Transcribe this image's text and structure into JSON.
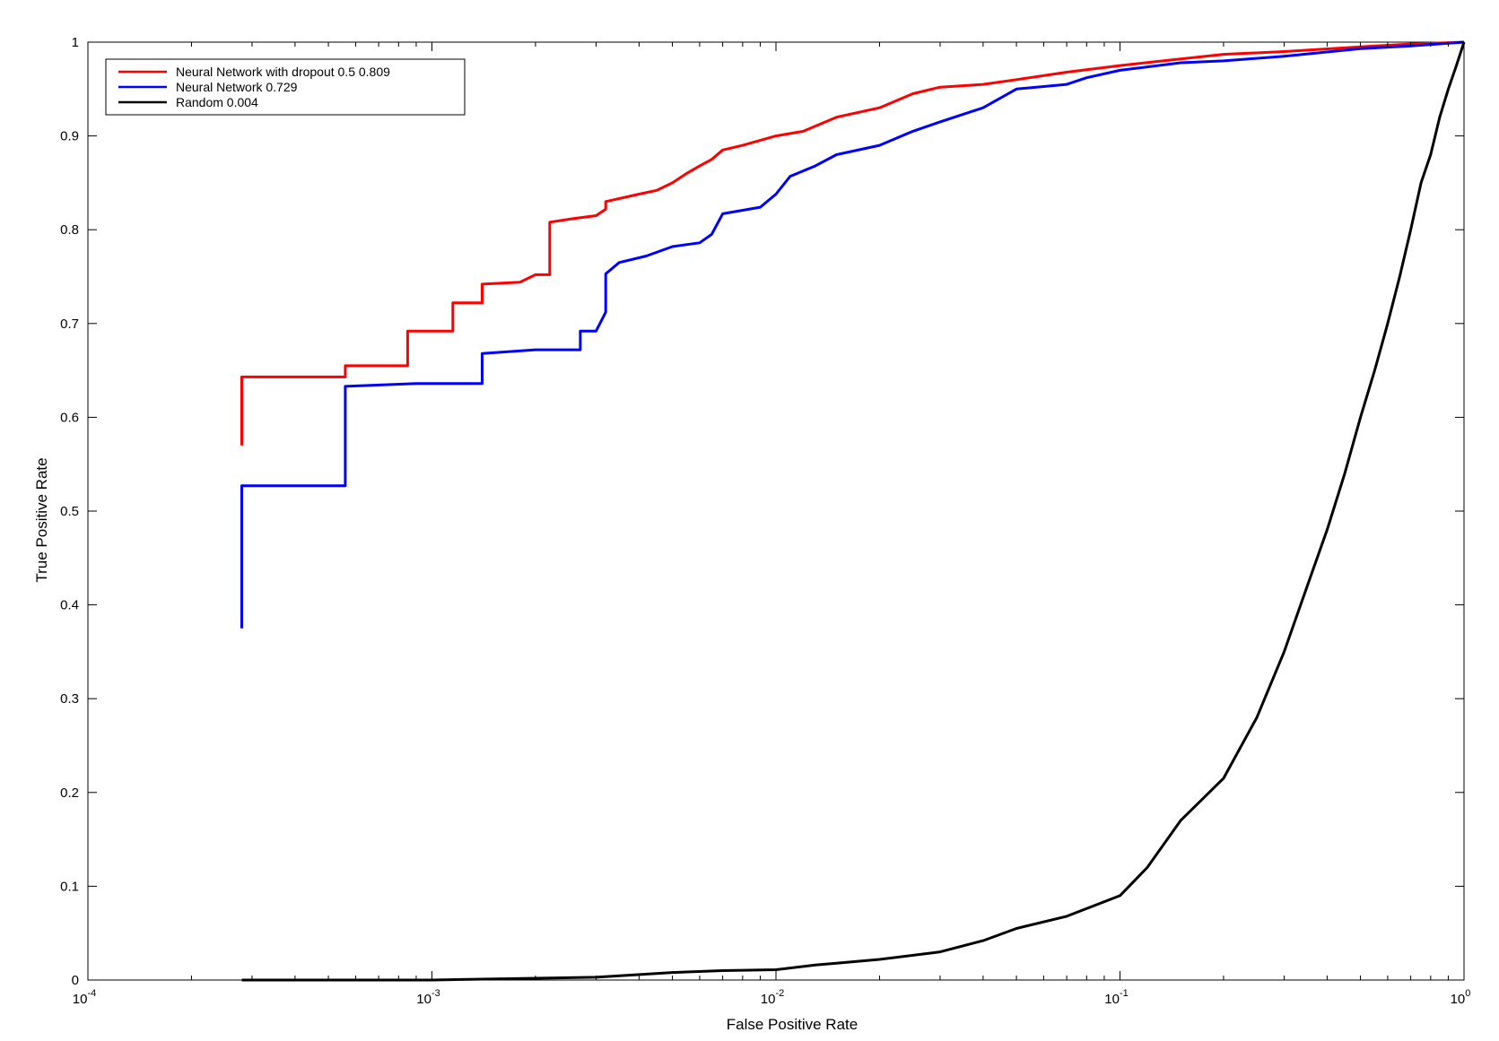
{
  "chart_data": {
    "type": "line",
    "title": "",
    "xlabel": "False Positive Rate",
    "ylabel": "True Positive Rate",
    "xscale": "log",
    "xlim": [
      0.0001,
      1
    ],
    "ylim": [
      0,
      1
    ],
    "grid": false,
    "legend_position": "top-left",
    "x_tick_labels": [
      {
        "base": "10",
        "exp": "-4",
        "value": 0.0001
      },
      {
        "base": "10",
        "exp": "-3",
        "value": 0.001
      },
      {
        "base": "10",
        "exp": "-2",
        "value": 0.01
      },
      {
        "base": "10",
        "exp": "-1",
        "value": 0.1
      },
      {
        "base": "10",
        "exp": "0",
        "value": 1
      }
    ],
    "y_tick_labels": [
      "0",
      "0.1",
      "0.2",
      "0.3",
      "0.4",
      "0.5",
      "0.6",
      "0.7",
      "0.8",
      "0.9",
      "1"
    ],
    "series": [
      {
        "name": "Neural Network with dropout 0.5  0.809",
        "color": "#ff0000",
        "x": [
          0.00028,
          0.00028,
          0.00056,
          0.00056,
          0.00085,
          0.00085,
          0.00115,
          0.00115,
          0.0014,
          0.0014,
          0.0018,
          0.002,
          0.0022,
          0.0022,
          0.0026,
          0.003,
          0.0032,
          0.0032,
          0.004,
          0.0045,
          0.005,
          0.0055,
          0.006,
          0.0065,
          0.007,
          0.008,
          0.01,
          0.012,
          0.015,
          0.02,
          0.025,
          0.03,
          0.04,
          0.05,
          0.07,
          0.1,
          0.15,
          0.2,
          0.3,
          0.5,
          0.7,
          1.0
        ],
        "y": [
          0.57,
          0.643,
          0.643,
          0.655,
          0.655,
          0.692,
          0.692,
          0.722,
          0.722,
          0.742,
          0.744,
          0.752,
          0.752,
          0.808,
          0.812,
          0.815,
          0.822,
          0.83,
          0.838,
          0.842,
          0.85,
          0.86,
          0.868,
          0.875,
          0.885,
          0.89,
          0.9,
          0.905,
          0.92,
          0.93,
          0.945,
          0.952,
          0.955,
          0.96,
          0.968,
          0.975,
          0.982,
          0.987,
          0.99,
          0.995,
          0.998,
          1.0
        ]
      },
      {
        "name": "Neural Network  0.729",
        "color": "#0000ff",
        "x": [
          0.00028,
          0.00028,
          0.00056,
          0.00056,
          0.0009,
          0.0014,
          0.0014,
          0.002,
          0.0027,
          0.0027,
          0.003,
          0.0032,
          0.0032,
          0.0035,
          0.0042,
          0.005,
          0.006,
          0.0065,
          0.007,
          0.009,
          0.01,
          0.011,
          0.013,
          0.015,
          0.02,
          0.025,
          0.03,
          0.04,
          0.05,
          0.07,
          0.08,
          0.1,
          0.15,
          0.2,
          0.3,
          0.5,
          0.7,
          1.0
        ],
        "y": [
          0.375,
          0.527,
          0.527,
          0.633,
          0.636,
          0.636,
          0.668,
          0.672,
          0.672,
          0.692,
          0.692,
          0.712,
          0.753,
          0.765,
          0.772,
          0.782,
          0.786,
          0.795,
          0.817,
          0.824,
          0.838,
          0.857,
          0.868,
          0.88,
          0.89,
          0.905,
          0.915,
          0.93,
          0.95,
          0.955,
          0.962,
          0.97,
          0.978,
          0.98,
          0.985,
          0.993,
          0.996,
          1.0
        ]
      },
      {
        "name": "Random  0.004",
        "color": "#000000",
        "x": [
          0.00028,
          0.001,
          0.003,
          0.005,
          0.007,
          0.01,
          0.013,
          0.015,
          0.02,
          0.03,
          0.04,
          0.05,
          0.07,
          0.1,
          0.12,
          0.15,
          0.2,
          0.25,
          0.3,
          0.35,
          0.4,
          0.45,
          0.5,
          0.55,
          0.6,
          0.65,
          0.7,
          0.75,
          0.8,
          0.85,
          0.9,
          0.95,
          1.0
        ],
        "y": [
          0.0,
          0.0,
          0.003,
          0.008,
          0.01,
          0.011,
          0.016,
          0.018,
          0.022,
          0.03,
          0.042,
          0.055,
          0.068,
          0.09,
          0.12,
          0.17,
          0.215,
          0.28,
          0.35,
          0.42,
          0.48,
          0.54,
          0.6,
          0.65,
          0.7,
          0.75,
          0.8,
          0.85,
          0.88,
          0.92,
          0.95,
          0.975,
          1.0
        ]
      }
    ]
  }
}
